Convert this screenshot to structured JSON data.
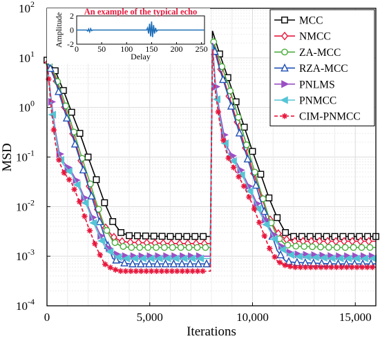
{
  "chart_data": {
    "type": "line",
    "xlabel": "Iterations",
    "ylabel": "MSD",
    "xlim": [
      0,
      16000
    ],
    "ylim": [
      0.0001,
      100
    ],
    "yscale": "log",
    "grid": true,
    "legend_placement": "top-right",
    "x_ticks": [
      {
        "value": 0,
        "label": "0"
      },
      {
        "value": 5000,
        "label": "5,000"
      },
      {
        "value": 10000,
        "label": "10,000"
      },
      {
        "value": 15000,
        "label": "15,000"
      }
    ],
    "y_ticks": [
      {
        "value": 0.0001,
        "base": "10",
        "exp": "-4"
      },
      {
        "value": 0.001,
        "base": "10",
        "exp": "-3"
      },
      {
        "value": 0.01,
        "base": "10",
        "exp": "-2"
      },
      {
        "value": 0.1,
        "base": "10",
        "exp": "-1"
      },
      {
        "value": 1,
        "base": "10",
        "exp": "0"
      },
      {
        "value": 10,
        "base": "10",
        "exp": "1"
      },
      {
        "value": 100,
        "base": "10",
        "exp": "2"
      }
    ],
    "series": [
      {
        "name": "MCC",
        "color": "#000000",
        "marker": "square",
        "dashed": false,
        "points": [
          [
            0,
            9
          ],
          [
            400,
            5.5
          ],
          [
            800,
            2.2
          ],
          [
            1200,
            0.8
          ],
          [
            1600,
            0.3
          ],
          [
            2000,
            0.1
          ],
          [
            2400,
            0.035
          ],
          [
            2800,
            0.012
          ],
          [
            3200,
            0.005
          ],
          [
            3600,
            0.003
          ],
          [
            4000,
            0.0026
          ],
          [
            6000,
            0.0025
          ],
          [
            7950,
            0.0025
          ],
          [
            8050,
            35
          ],
          [
            8400,
            12
          ],
          [
            8800,
            4
          ],
          [
            9200,
            1.3
          ],
          [
            9600,
            0.4
          ],
          [
            10000,
            0.13
          ],
          [
            10400,
            0.045
          ],
          [
            10800,
            0.015
          ],
          [
            11200,
            0.006
          ],
          [
            11600,
            0.003
          ],
          [
            12000,
            0.0025
          ],
          [
            14000,
            0.0025
          ],
          [
            16000,
            0.0025
          ]
        ]
      },
      {
        "name": "NMCC",
        "color": "#e8173c",
        "marker": "diamond",
        "dashed": false,
        "points": [
          [
            0,
            9
          ],
          [
            400,
            4
          ],
          [
            800,
            1.2
          ],
          [
            1200,
            0.35
          ],
          [
            1600,
            0.1
          ],
          [
            2000,
            0.03
          ],
          [
            2400,
            0.01
          ],
          [
            2800,
            0.004
          ],
          [
            3200,
            0.0025
          ],
          [
            3600,
            0.002
          ],
          [
            4000,
            0.0019
          ],
          [
            6000,
            0.0018
          ],
          [
            7950,
            0.0018
          ],
          [
            8050,
            22
          ],
          [
            8400,
            7
          ],
          [
            8800,
            2
          ],
          [
            9200,
            0.6
          ],
          [
            9600,
            0.18
          ],
          [
            10000,
            0.055
          ],
          [
            10400,
            0.017
          ],
          [
            10800,
            0.006
          ],
          [
            11200,
            0.003
          ],
          [
            11600,
            0.0022
          ],
          [
            12000,
            0.002
          ],
          [
            14000,
            0.002
          ],
          [
            16000,
            0.002
          ]
        ]
      },
      {
        "name": "ZA-MCC",
        "color": "#4aac3d",
        "marker": "circle",
        "dashed": false,
        "points": [
          [
            0,
            9
          ],
          [
            400,
            4.5
          ],
          [
            800,
            1.5
          ],
          [
            1200,
            0.45
          ],
          [
            1600,
            0.13
          ],
          [
            2000,
            0.04
          ],
          [
            2400,
            0.012
          ],
          [
            2800,
            0.004
          ],
          [
            3200,
            0.002
          ],
          [
            3600,
            0.0016
          ],
          [
            4000,
            0.0015
          ],
          [
            6000,
            0.0015
          ],
          [
            7950,
            0.0015
          ],
          [
            8050,
            25
          ],
          [
            8400,
            9
          ],
          [
            8800,
            3
          ],
          [
            9200,
            0.9
          ],
          [
            9600,
            0.25
          ],
          [
            10000,
            0.07
          ],
          [
            10400,
            0.02
          ],
          [
            10800,
            0.006
          ],
          [
            11200,
            0.0025
          ],
          [
            11600,
            0.0017
          ],
          [
            12000,
            0.0016
          ],
          [
            14000,
            0.0015
          ],
          [
            16000,
            0.0015
          ]
        ]
      },
      {
        "name": "RZA-MCC",
        "color": "#1f4fb4",
        "marker": "triangle-up",
        "dashed": false,
        "points": [
          [
            0,
            9
          ],
          [
            400,
            3.5
          ],
          [
            800,
            1.0
          ],
          [
            1200,
            0.3
          ],
          [
            1600,
            0.09
          ],
          [
            2000,
            0.027
          ],
          [
            2400,
            0.008
          ],
          [
            2800,
            0.0025
          ],
          [
            3200,
            0.0009
          ],
          [
            3600,
            0.00075
          ],
          [
            4000,
            0.0007
          ],
          [
            6000,
            0.0007
          ],
          [
            7950,
            0.0007
          ],
          [
            8050,
            20
          ],
          [
            8400,
            6
          ],
          [
            8800,
            1.8
          ],
          [
            9200,
            0.5
          ],
          [
            9600,
            0.15
          ],
          [
            10000,
            0.045
          ],
          [
            10400,
            0.013
          ],
          [
            10800,
            0.004
          ],
          [
            11200,
            0.0013
          ],
          [
            11600,
            0.0008
          ],
          [
            12000,
            0.00075
          ],
          [
            14000,
            0.0007
          ],
          [
            16000,
            0.0007
          ]
        ]
      },
      {
        "name": "PNLMS",
        "color": "#9b4fc4",
        "marker": "triangle-right",
        "dashed": false,
        "points": [
          [
            0,
            9
          ],
          [
            200,
            1.5
          ],
          [
            400,
            0.35
          ],
          [
            600,
            0.12
          ],
          [
            800,
            0.08
          ],
          [
            1200,
            0.05
          ],
          [
            1600,
            0.025
          ],
          [
            2000,
            0.01
          ],
          [
            2400,
            0.004
          ],
          [
            2800,
            0.0018
          ],
          [
            3200,
            0.0012
          ],
          [
            3600,
            0.001
          ],
          [
            4000,
            0.001
          ],
          [
            6000,
            0.001
          ],
          [
            7950,
            0.001
          ],
          [
            8050,
            20
          ],
          [
            8200,
            3
          ],
          [
            8400,
            0.8
          ],
          [
            8600,
            0.3
          ],
          [
            8800,
            0.15
          ],
          [
            9200,
            0.08
          ],
          [
            9600,
            0.04
          ],
          [
            10000,
            0.018
          ],
          [
            10400,
            0.008
          ],
          [
            10800,
            0.004
          ],
          [
            11200,
            0.002
          ],
          [
            11600,
            0.0013
          ],
          [
            12000,
            0.0011
          ],
          [
            14000,
            0.001
          ],
          [
            16000,
            0.001
          ]
        ]
      },
      {
        "name": "PNMCC",
        "color": "#55c4d6",
        "marker": "triangle-left",
        "dashed": false,
        "points": [
          [
            0,
            9
          ],
          [
            200,
            1.2
          ],
          [
            400,
            0.3
          ],
          [
            600,
            0.1
          ],
          [
            800,
            0.07
          ],
          [
            1200,
            0.045
          ],
          [
            1600,
            0.022
          ],
          [
            2000,
            0.009
          ],
          [
            2400,
            0.0035
          ],
          [
            2800,
            0.0016
          ],
          [
            3200,
            0.0011
          ],
          [
            3600,
            0.0009
          ],
          [
            4000,
            0.0009
          ],
          [
            6000,
            0.0009
          ],
          [
            7950,
            0.0009
          ],
          [
            8050,
            18
          ],
          [
            8200,
            2.5
          ],
          [
            8400,
            0.6
          ],
          [
            8600,
            0.25
          ],
          [
            8800,
            0.12
          ],
          [
            9200,
            0.07
          ],
          [
            9600,
            0.035
          ],
          [
            10000,
            0.016
          ],
          [
            10400,
            0.007
          ],
          [
            10800,
            0.0035
          ],
          [
            11200,
            0.0018
          ],
          [
            11600,
            0.0012
          ],
          [
            12000,
            0.001
          ],
          [
            14000,
            0.0009
          ],
          [
            16000,
            0.0009
          ]
        ]
      },
      {
        "name": "CIM-PNMCC",
        "color": "#e8173c",
        "marker": "star",
        "dashed": true,
        "points": [
          [
            0,
            9
          ],
          [
            200,
            1.0
          ],
          [
            400,
            0.2
          ],
          [
            600,
            0.08
          ],
          [
            800,
            0.05
          ],
          [
            1200,
            0.03
          ],
          [
            1600,
            0.012
          ],
          [
            2000,
            0.004
          ],
          [
            2400,
            0.0015
          ],
          [
            2800,
            0.0007
          ],
          [
            3200,
            0.00055
          ],
          [
            3600,
            0.0005
          ],
          [
            4000,
            0.0005
          ],
          [
            6000,
            0.0005
          ],
          [
            7950,
            0.0005
          ],
          [
            8050,
            15
          ],
          [
            8200,
            2
          ],
          [
            8400,
            0.5
          ],
          [
            8600,
            0.2
          ],
          [
            8800,
            0.1
          ],
          [
            9200,
            0.05
          ],
          [
            9600,
            0.025
          ],
          [
            10000,
            0.011
          ],
          [
            10400,
            0.004
          ],
          [
            10800,
            0.0015
          ],
          [
            11200,
            0.0008
          ],
          [
            11600,
            0.00065
          ],
          [
            12000,
            0.0006
          ],
          [
            14000,
            0.0006
          ],
          [
            16000,
            0.0006
          ]
        ]
      }
    ],
    "inset": {
      "title": "An example of the typical echo",
      "xlabel": "Delay",
      "ylabel": "Amplitude",
      "xlim": [
        0,
        256
      ],
      "ylim": [
        -2,
        2
      ],
      "x_ticks": [
        0,
        50,
        100,
        150,
        200,
        250
      ],
      "y_ticks": [
        -2,
        0,
        2
      ],
      "color": "#1f6fb8",
      "points": [
        [
          0,
          0
        ],
        [
          20,
          0
        ],
        [
          22,
          -0.15
        ],
        [
          24,
          0.15
        ],
        [
          26,
          -0.25
        ],
        [
          28,
          0.2
        ],
        [
          30,
          -0.1
        ],
        [
          32,
          0
        ],
        [
          140,
          0
        ],
        [
          142,
          0.3
        ],
        [
          144,
          -0.5
        ],
        [
          146,
          0.9
        ],
        [
          148,
          -0.9
        ],
        [
          150,
          1.2
        ],
        [
          152,
          -1.0
        ],
        [
          154,
          0.7
        ],
        [
          156,
          -0.5
        ],
        [
          158,
          0.3
        ],
        [
          160,
          -0.2
        ],
        [
          162,
          0
        ],
        [
          256,
          0
        ]
      ]
    }
  }
}
